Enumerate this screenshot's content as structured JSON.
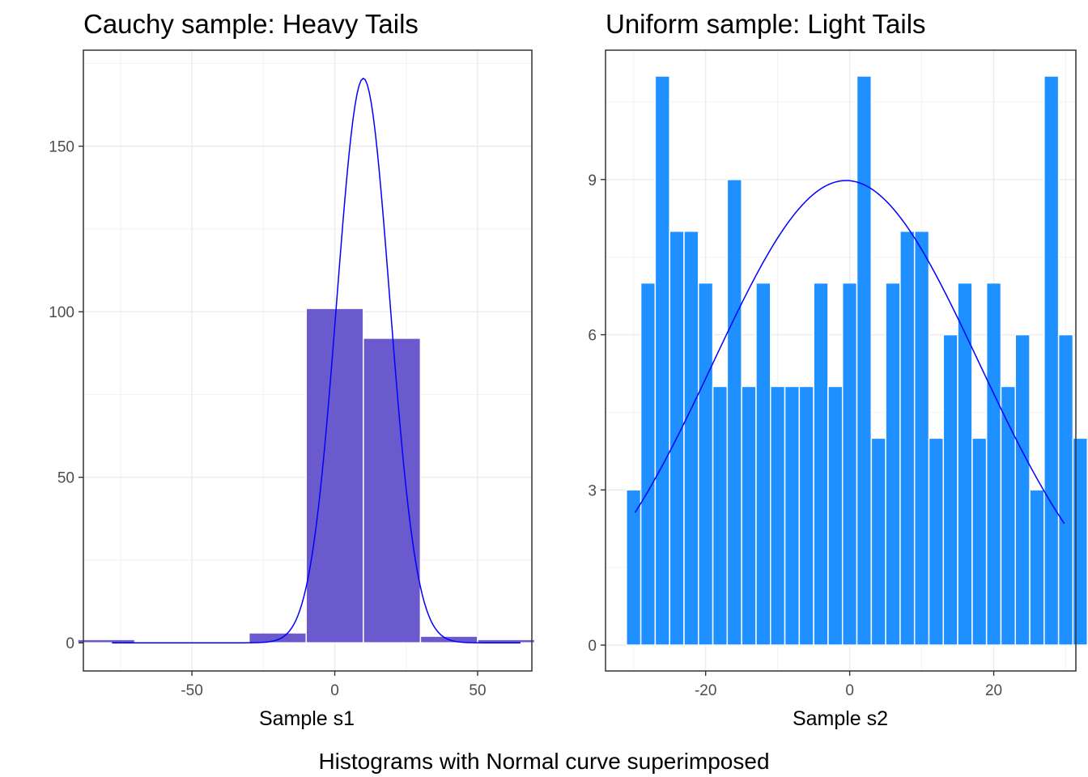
{
  "caption": "Histograms with Normal curve superimposed",
  "chart_data": [
    {
      "type": "bar",
      "title": "Cauchy sample: Heavy Tails",
      "xlabel": "Sample s1",
      "ylabel": "",
      "xlim": [
        -88,
        69
      ],
      "ylim": [
        -8.5,
        179
      ],
      "x_ticks": [
        -50,
        0,
        50
      ],
      "x_tick_labels": [
        "-50",
        "0",
        "50"
      ],
      "y_ticks": [
        0,
        50,
        100,
        150
      ],
      "y_tick_labels": [
        "0",
        "50",
        "100",
        "150"
      ],
      "grid": true,
      "bar_color": "#6a5acd",
      "curve_color": "#0000ff",
      "bins": [
        {
          "x0": -90,
          "x1": -70,
          "count": 1
        },
        {
          "x0": -30,
          "x1": -10,
          "count": 3
        },
        {
          "x0": -10,
          "x1": 10,
          "count": 101
        },
        {
          "x0": 10,
          "x1": 30,
          "count": 92
        },
        {
          "x0": 30,
          "x1": 50,
          "count": 2
        },
        {
          "x0": 50,
          "x1": 70,
          "count": 1
        }
      ],
      "normal_curve": {
        "mean": 10,
        "sd": 9.3,
        "peak": 170.5,
        "x_range": [
          -78,
          65
        ]
      }
    },
    {
      "type": "bar",
      "title": "Uniform sample: Light Tails",
      "xlabel": "Sample s2",
      "ylabel": "",
      "xlim": [
        -33.9,
        31.4
      ],
      "ylim": [
        -0.5,
        11.5
      ],
      "x_ticks": [
        -20,
        0,
        20
      ],
      "x_tick_labels": [
        "-20",
        "0",
        "20"
      ],
      "y_ticks": [
        0,
        3,
        6,
        9
      ],
      "y_tick_labels": [
        "0",
        "3",
        "6",
        "9"
      ],
      "grid": true,
      "bar_color": "#1e90ff",
      "curve_color": "#0000ff",
      "bin_start": -31,
      "bin_width": 2,
      "counts": [
        3,
        7,
        11,
        8,
        8,
        7,
        5,
        9,
        5,
        7,
        5,
        5,
        5,
        7,
        5,
        7,
        11,
        4,
        7,
        8,
        8,
        4,
        6,
        7,
        4,
        7,
        5,
        6,
        3,
        11,
        6,
        4
      ],
      "normal_curve": {
        "mean": -0.5,
        "sd": 18.5,
        "peak": 8.98,
        "x_range": [
          -29.8,
          29.8
        ]
      }
    }
  ]
}
